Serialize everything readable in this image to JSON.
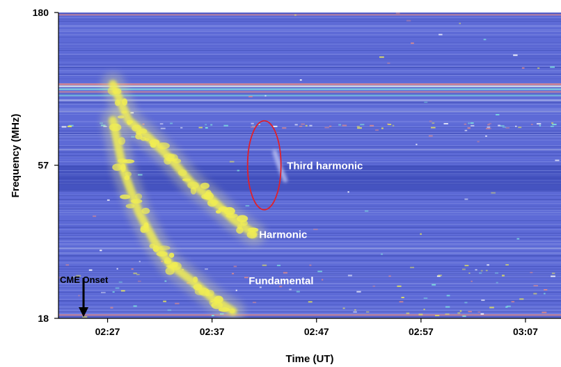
{
  "chart_data": {
    "type": "heatmap",
    "title": "",
    "xlabel": "Time (UT)",
    "ylabel": "Frequency (MHz)",
    "x_ticks": [
      "02:27",
      "02:37",
      "02:47",
      "02:57",
      "03:07"
    ],
    "x_tick_minutes": [
      27,
      37,
      47,
      57,
      67
    ],
    "xlim_minutes_after_0200": [
      22.3,
      70.4
    ],
    "y_ticks": [
      180,
      57,
      18
    ],
    "ylim": [
      18,
      180
    ],
    "y_scale": "log",
    "grid": false,
    "colors": {
      "background": "#5d6ad6",
      "dark_band": "#3e4cb8",
      "emission": "#f1ee52",
      "rfi_cyan": "#7fe6e0",
      "rfi_red": "#e08a8a",
      "ellipse": "#e0202a"
    },
    "annotations": [
      {
        "label": "Third harmonic",
        "time_minutes": 43.5,
        "freq_mhz": 57
      },
      {
        "label": "Harmonic",
        "time_minutes": 41.5,
        "freq_mhz": 34
      },
      {
        "label": "Fundamental",
        "time_minutes": 40.5,
        "freq_mhz": 24
      },
      {
        "label": "CME Onset",
        "time_minutes": 24.7,
        "freq_mhz": 24
      }
    ],
    "cme_onset_minutes": 24.7,
    "bursts": [
      {
        "name": "Harmonic",
        "points": [
          [
            27.5,
            105
          ],
          [
            29.0,
            80
          ],
          [
            31.0,
            70
          ],
          [
            33.0,
            60
          ],
          [
            35.0,
            50
          ],
          [
            37.0,
            44
          ],
          [
            39.0,
            38
          ],
          [
            41.0,
            34
          ]
        ]
      },
      {
        "name": "Fundamental",
        "points": [
          [
            27.5,
            80
          ],
          [
            28.5,
            55
          ],
          [
            30.0,
            40
          ],
          [
            31.5,
            32
          ],
          [
            33.0,
            27
          ],
          [
            35.0,
            24
          ],
          [
            37.0,
            21
          ],
          [
            39.0,
            19
          ]
        ]
      },
      {
        "name": "Third harmonic",
        "points": [
          [
            43.0,
            63
          ],
          [
            43.5,
            56
          ],
          [
            44.0,
            51
          ]
        ]
      }
    ]
  }
}
